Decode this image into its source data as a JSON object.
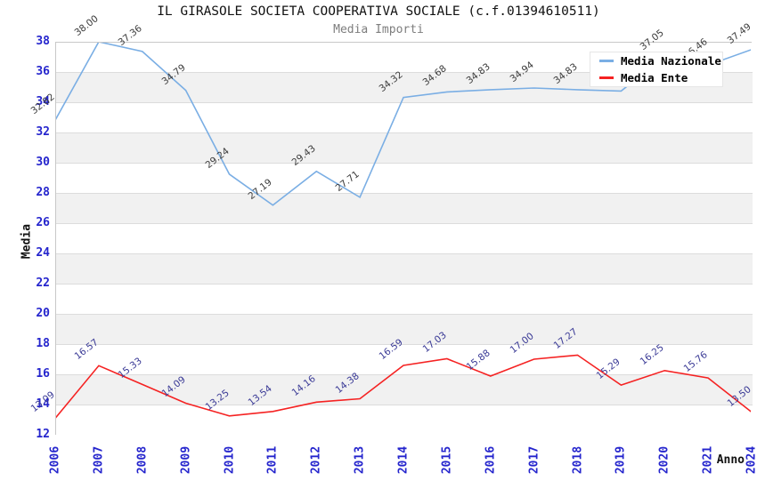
{
  "title": "IL GIRASOLE SOCIETA COOPERATIVA SOCIALE (c.f.01394610511)",
  "subtitle": "Media Importi",
  "axes": {
    "x_label": "Anno",
    "y_label": "Media",
    "y_ticks": [
      38,
      36,
      34,
      32,
      30,
      28,
      26,
      24,
      22,
      20,
      18,
      16,
      14,
      12
    ],
    "tick_color": "#2525cd"
  },
  "legend": {
    "items": [
      {
        "label": "Media Nazionale",
        "color": "#7aaee4"
      },
      {
        "label": "Media Ente",
        "color": "#f52222"
      }
    ]
  },
  "chart_data": {
    "type": "line",
    "categories": [
      "2006",
      "2007",
      "2008",
      "2009",
      "2010",
      "2011",
      "2012",
      "2013",
      "2014",
      "2015",
      "2016",
      "2017",
      "2018",
      "2019",
      "2020",
      "2021",
      "2024"
    ],
    "series": [
      {
        "name": "Media Nazionale",
        "color": "#7aaee4",
        "label_color": "#3c3c3c",
        "values": [
          32.82,
          38.0,
          37.36,
          34.79,
          29.24,
          27.19,
          29.43,
          27.71,
          34.32,
          34.68,
          34.83,
          34.94,
          34.83,
          34.74,
          37.05,
          36.46,
          37.49
        ],
        "labels": [
          "32.82",
          "38.00",
          "37.36",
          "34.79",
          "29.24",
          "27.19",
          "29.43",
          "27.71",
          "34.32",
          "34.68",
          "34.83",
          "34.94",
          "34.83",
          "",
          "37.05",
          "36.46",
          "37.49"
        ]
      },
      {
        "name": "Media Ente",
        "color": "#f52222",
        "label_color": "#3a3a96",
        "values": [
          13.09,
          16.57,
          15.33,
          14.09,
          13.25,
          13.54,
          14.16,
          14.38,
          16.59,
          17.03,
          15.88,
          17.0,
          17.27,
          15.29,
          16.25,
          15.76,
          13.5
        ],
        "labels": [
          "13.09",
          "16.57",
          "15.33",
          "14.09",
          "13.25",
          "13.54",
          "14.16",
          "14.38",
          "16.59",
          "17.03",
          "15.88",
          "17.00",
          "17.27",
          "15.29",
          "16.25",
          "15.76",
          "13.50"
        ]
      }
    ],
    "title": "IL GIRASOLE SOCIETA COOPERATIVA SOCIALE (c.f.01394610511)",
    "xlabel": "Anno",
    "ylabel": "Media",
    "ylim": [
      12,
      38
    ],
    "grid": "horizontal-bands",
    "band_color": "#f1f1f1",
    "legend_position": "top-right"
  }
}
